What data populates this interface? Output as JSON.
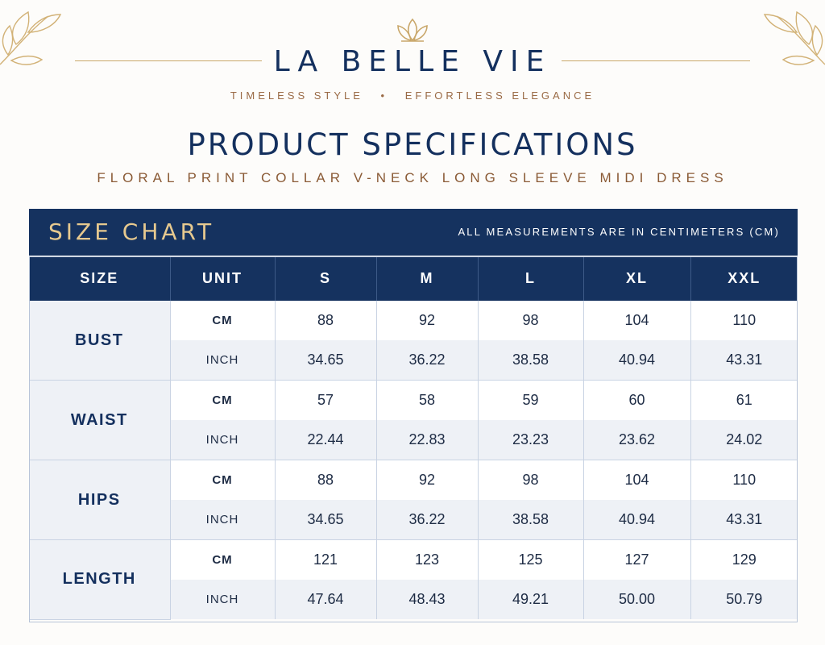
{
  "brand": {
    "name": "LA BELLE VIE",
    "tagline_left": "TIMELESS STYLE",
    "tagline_separator": "•",
    "tagline_right": "EFFORTLESS ELEGANCE"
  },
  "page": {
    "title": "PRODUCT SPECIFICATIONS",
    "product_name": "FLORAL PRINT COLLAR V-NECK LONG SLEEVE MIDI DRESS"
  },
  "size_chart": {
    "title": "SIZE CHART",
    "note": "ALL MEASUREMENTS ARE IN CENTIMETERS (CM)",
    "headers": [
      "SIZE",
      "UNIT",
      "S",
      "M",
      "L",
      "XL",
      "XXL"
    ],
    "rows": [
      {
        "measure": "BUST",
        "cm": {
          "unit": "CM",
          "values": [
            "88",
            "92",
            "98",
            "104",
            "110"
          ]
        },
        "inch": {
          "unit": "INCH",
          "values": [
            "34.65",
            "36.22",
            "38.58",
            "40.94",
            "43.31"
          ]
        }
      },
      {
        "measure": "WAIST",
        "cm": {
          "unit": "CM",
          "values": [
            "57",
            "58",
            "59",
            "60",
            "61"
          ]
        },
        "inch": {
          "unit": "INCH",
          "values": [
            "22.44",
            "22.83",
            "23.23",
            "23.62",
            "24.02"
          ]
        }
      },
      {
        "measure": "HIPS",
        "cm": {
          "unit": "CM",
          "values": [
            "88",
            "92",
            "98",
            "104",
            "110"
          ]
        },
        "inch": {
          "unit": "INCH",
          "values": [
            "34.65",
            "36.22",
            "38.58",
            "40.94",
            "43.31"
          ]
        }
      },
      {
        "measure": "LENGTH",
        "cm": {
          "unit": "CM",
          "values": [
            "121",
            "123",
            "125",
            "127",
            "129"
          ]
        },
        "inch": {
          "unit": "INCH",
          "values": [
            "47.64",
            "48.43",
            "49.21",
            "50.00",
            "50.79"
          ]
        }
      }
    ]
  },
  "colors": {
    "navy": "#15325f",
    "gold": "#c9a76a",
    "bronze": "#8a5a35"
  }
}
